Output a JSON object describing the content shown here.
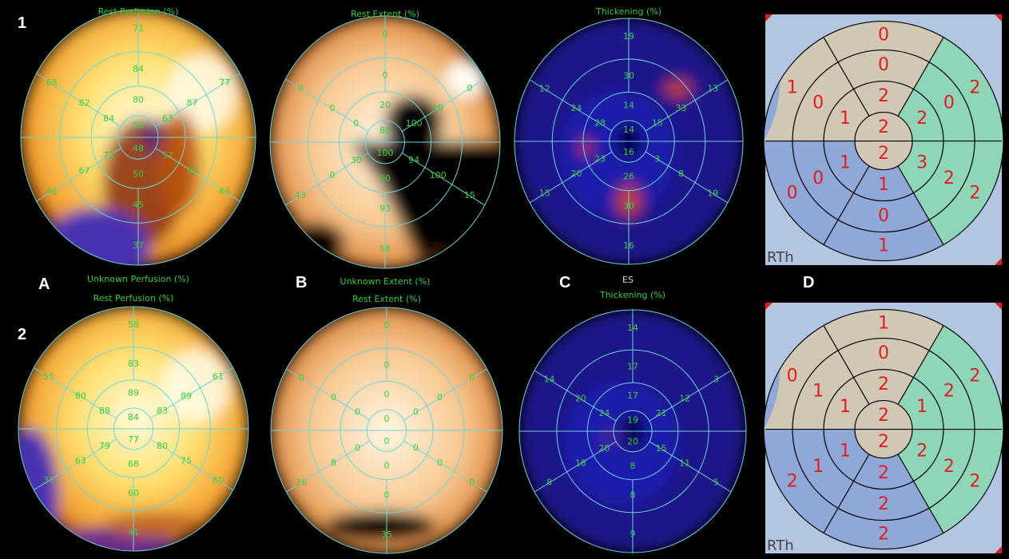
{
  "labels": {
    "row1": "1",
    "row2": "2",
    "colA": "A",
    "colB": "B",
    "colC": "C",
    "colD": "D",
    "es": "ES",
    "unknown_perfusion": "Unknown Perfusion (%)",
    "unknown_extent": "Unknown Extent (%)"
  },
  "colors": {
    "grid_line": "#6fd3d8",
    "map_label": "#3ccc3c",
    "score_text": "#e01e1e",
    "score_grid": "#000000",
    "region_anterior": "#d2c6b4",
    "region_lateral": "#8fd6b8",
    "region_inferior": "#8fa8d8",
    "region_apex": "#d2c6b4",
    "background": "#b2c6e2",
    "corner_mark": "#e01e1e"
  },
  "panels": {
    "r1_perfusion": {
      "title": "Rest Perfusion (%)",
      "colormap": "perfusion",
      "apex": "58",
      "apex_lower": "48",
      "ring1": [
        "80",
        "63",
        "57",
        "50",
        "73",
        "84"
      ],
      "ring2": [
        "84",
        "87",
        "58",
        "45",
        "67",
        "82"
      ],
      "ring3": [
        "71",
        "77",
        "64",
        "37",
        "46",
        "68"
      ]
    },
    "r1_extent": {
      "title": "Rest Extent (%)",
      "colormap": "extent",
      "apex": "80",
      "apex_lower": "100",
      "ring1": [
        "20",
        "100",
        "94",
        "90",
        "30",
        "0"
      ],
      "ring2": [
        "0",
        "19",
        "100",
        "93",
        "0",
        "0"
      ],
      "ring3": [
        "0",
        "0",
        "15",
        "58",
        "43",
        "0"
      ]
    },
    "r1_thickening": {
      "title": "Thickening (%)",
      "colormap": "thickening",
      "apex": "14",
      "apex_lower": "16",
      "ring1": [
        "14",
        "15",
        "3",
        "26",
        "23",
        "28"
      ],
      "ring2": [
        "30",
        "33",
        "8",
        "30",
        "20",
        "24"
      ],
      "ring3": [
        "19",
        "13",
        "19",
        "16",
        "15",
        "12"
      ]
    },
    "r2_perfusion": {
      "title": "Rest Perfusion (%)",
      "colormap": "perfusion",
      "apex": "84",
      "apex_lower": "77",
      "ring1": [
        "89",
        "83",
        "80",
        "68",
        "79",
        "88"
      ],
      "ring2": [
        "83",
        "89",
        "75",
        "60",
        "63",
        "80"
      ],
      "ring3": [
        "58",
        "61",
        "60",
        "41",
        "37",
        "55"
      ]
    },
    "r2_extent": {
      "title": "Rest Extent (%)",
      "colormap": "extent",
      "apex": "0",
      "apex_lower": "0",
      "ring1": [
        "0",
        "0",
        "0",
        "0",
        "0",
        "0"
      ],
      "ring2": [
        "0",
        "0",
        "0",
        "0",
        "8",
        "0"
      ],
      "ring3": [
        "0",
        "0",
        "0",
        "35",
        "26",
        "0"
      ]
    },
    "r2_thickening": {
      "title": "Thickening (%)",
      "colormap": "thickening",
      "apex": "19",
      "apex_lower": "20",
      "ring1": [
        "17",
        "21",
        "15",
        "8",
        "20",
        "24"
      ],
      "ring2": [
        "17",
        "12",
        "11",
        "8",
        "18",
        "20"
      ],
      "ring3": [
        "14",
        "3",
        "5",
        "9",
        "8",
        "14"
      ]
    }
  },
  "scores": {
    "r1": {
      "caption": "RTh",
      "apex": [
        "2",
        "2"
      ],
      "inner": [
        "2",
        "2",
        "3",
        "1",
        "1",
        "1"
      ],
      "mid": [
        "0",
        "0",
        "2",
        "0",
        "0",
        "0"
      ],
      "outer": [
        "0",
        "2",
        "2",
        "1",
        "0",
        "1"
      ]
    },
    "r2": {
      "caption": "RTh",
      "apex": [
        "2",
        "2"
      ],
      "inner": [
        "2",
        "1",
        "2",
        "2",
        "1",
        "1"
      ],
      "mid": [
        "0",
        "2",
        "2",
        "2",
        "1",
        "1"
      ],
      "outer": [
        "1",
        "2",
        "2",
        "2",
        "2",
        "0"
      ]
    }
  }
}
